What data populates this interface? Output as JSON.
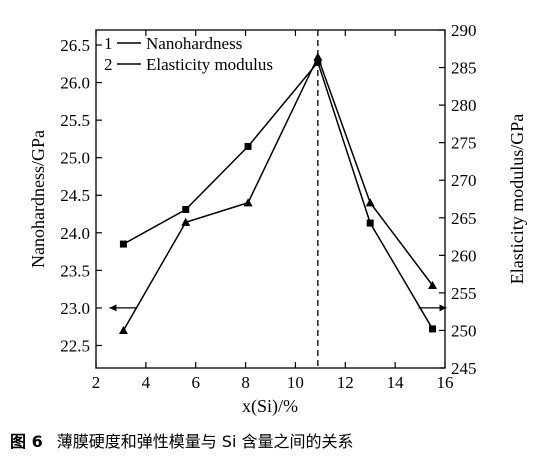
{
  "chart_data": {
    "type": "line",
    "xlabel": "x(Si)/%",
    "ylabel_left": "Nanohardness/GPa",
    "ylabel_right": "Elasticity modulus/GPa",
    "xlim": [
      2,
      16
    ],
    "ylim_left": [
      22.2,
      26.7
    ],
    "ylim_right": [
      245,
      290
    ],
    "x_ticks": [
      "2",
      "4",
      "6",
      "8",
      "10",
      "12",
      "14",
      "16"
    ],
    "y_left_ticks": [
      "22.5",
      "23.0",
      "23.5",
      "24.0",
      "24.5",
      "25.0",
      "25.5",
      "26.0",
      "26.5"
    ],
    "y_right_ticks": [
      "245",
      "250",
      "255",
      "260",
      "265",
      "270",
      "275",
      "280",
      "285",
      "290"
    ],
    "series": [
      {
        "name": "Nanohardness",
        "legend_number": "1",
        "axis": "left",
        "marker": "square",
        "x": [
          3.1,
          5.6,
          8.1,
          10.9,
          13.0,
          15.5
        ],
        "y": [
          23.85,
          24.31,
          25.15,
          26.27,
          24.13,
          22.72
        ]
      },
      {
        "name": "Elasticity modulus",
        "legend_number": "2",
        "axis": "right",
        "marker": "triangle",
        "x": [
          3.1,
          5.6,
          8.1,
          10.9,
          13.0,
          15.5
        ],
        "y": [
          250,
          264.4,
          267,
          286.4,
          267,
          256
        ]
      }
    ],
    "reference_line_x": 10.9,
    "axis_arrows": [
      {
        "points_to": "left-axis",
        "x": 3.1
      },
      {
        "points_to": "right-axis",
        "x": 15.5
      }
    ],
    "legend_position": "top-left",
    "grid": false
  },
  "caption": {
    "number": "图 6",
    "text": "薄膜硬度和弹性模量与 Si 含量之间的关系"
  }
}
